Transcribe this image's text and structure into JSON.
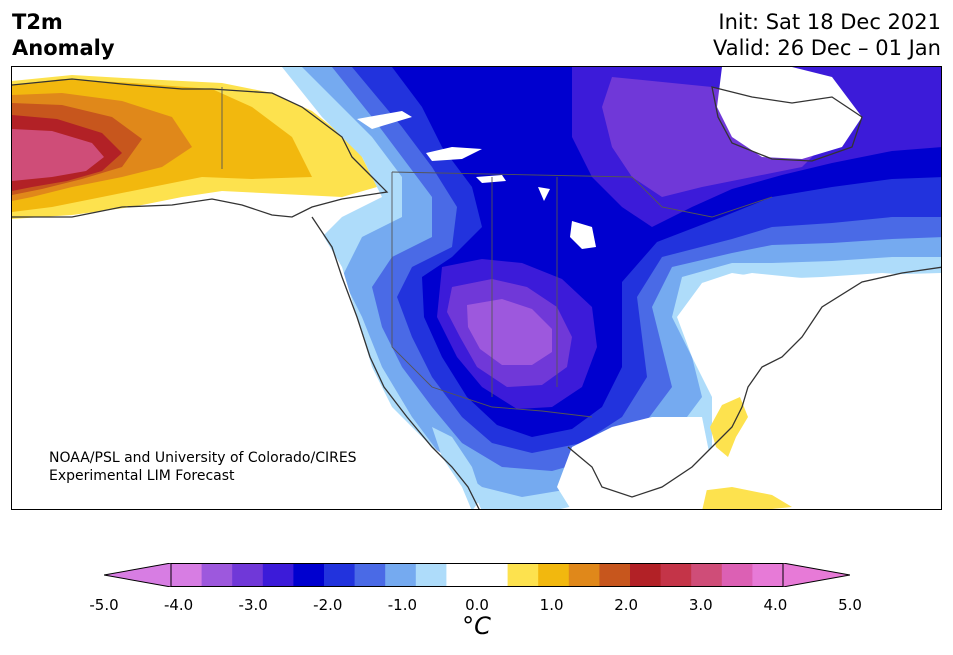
{
  "title": {
    "left_lines": [
      "T2m",
      "Anomaly"
    ],
    "init": "Init: Sat 18 Dec 2021",
    "valid": "Valid: 26 Dec – 01 Jan"
  },
  "credit": {
    "line1": "NOAA/PSL and University of Colorado/CIRES",
    "line2": "Experimental LIM Forecast"
  },
  "colorbar": {
    "ticks": [
      "-5.0",
      "-4.0",
      "-3.0",
      "-2.0",
      "-1.0",
      "0.0",
      "1.0",
      "2.0",
      "3.0",
      "4.0",
      "5.0"
    ],
    "unit": "°C",
    "min_color": "#d77de3",
    "max_color": "#e77ad7",
    "colors": [
      "#d77de3",
      "#9d58dd",
      "#7038d8",
      "#3c1bd9",
      "#0000cf",
      "#2233dd",
      "#4a6ae6",
      "#75aaf0",
      "#aedcfa",
      "#ffffff",
      "#ffffff",
      "#fde24e",
      "#f2b80e",
      "#e0881a",
      "#c7561d",
      "#b22126",
      "#c43448",
      "#cf4d78",
      "#dc60b4",
      "#e77ad7"
    ]
  },
  "map": {
    "region": "North America",
    "field": "2 m temperature anomaly",
    "colors": {
      "deep_purple": "#9d58dd",
      "purple": "#7038d8",
      "indigo": "#3c1bd9",
      "deep_blue": "#0000cf",
      "blue": "#2233dd",
      "mid_blue": "#4a6ae6",
      "light_blue": "#75aaf0",
      "pale_blue": "#aedcfa",
      "yellow": "#fde24e",
      "gold": "#f2b80e",
      "orange": "#e0881a",
      "red": "#b22126",
      "pink": "#cf4d78"
    }
  }
}
